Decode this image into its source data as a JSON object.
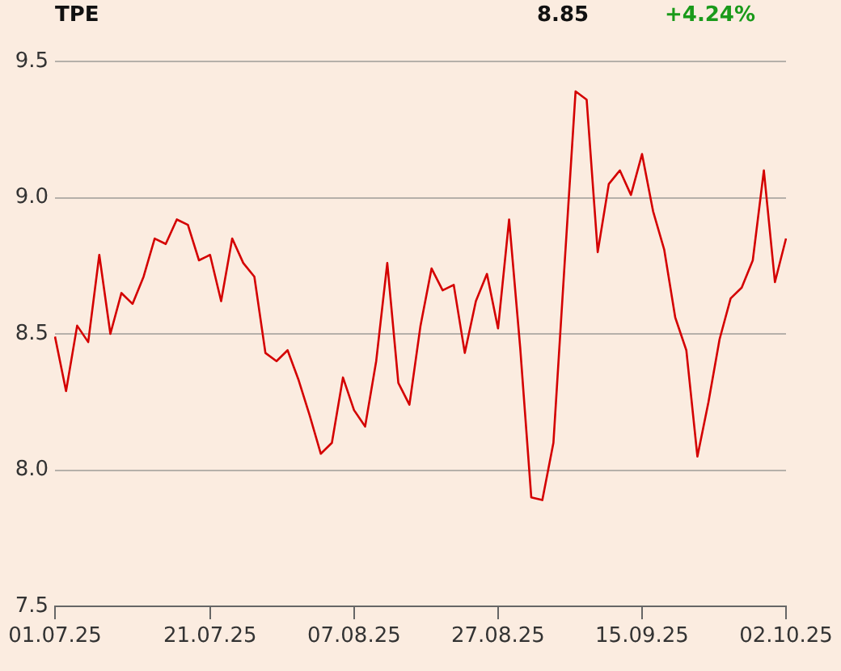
{
  "chart_data": {
    "type": "line",
    "title": "TPE",
    "annotations": [
      "8.85",
      "+4.24%"
    ],
    "categories": [
      "01.07.25",
      null,
      null,
      null,
      null,
      null,
      null,
      null,
      null,
      null,
      null,
      null,
      null,
      null,
      "21.07.25",
      null,
      null,
      null,
      null,
      null,
      null,
      null,
      null,
      null,
      null,
      null,
      null,
      "07.08.25",
      null,
      null,
      null,
      null,
      null,
      null,
      null,
      null,
      null,
      null,
      null,
      null,
      "27.08.25",
      null,
      null,
      null,
      null,
      null,
      null,
      null,
      null,
      null,
      null,
      null,
      null,
      "15.09.25",
      null,
      null,
      null,
      null,
      null,
      null,
      null,
      null,
      null,
      null,
      null,
      null,
      "02.10.25"
    ],
    "series": [
      {
        "color": "#d40000",
        "values": [
          8.49,
          8.29,
          8.53,
          8.47,
          8.79,
          8.5,
          8.65,
          8.61,
          8.71,
          8.85,
          8.83,
          8.92,
          8.9,
          8.77,
          8.79,
          8.62,
          8.85,
          8.76,
          8.71,
          8.43,
          8.4,
          8.44,
          8.33,
          8.2,
          8.06,
          8.1,
          8.34,
          8.22,
          8.16,
          8.4,
          8.76,
          8.32,
          8.24,
          8.53,
          8.74,
          8.66,
          8.68,
          8.43,
          8.62,
          8.72,
          8.52,
          8.92,
          8.45,
          7.9,
          7.89,
          8.1,
          8.75,
          9.39,
          9.36,
          8.8,
          9.05,
          9.1,
          9.01,
          9.16,
          8.95,
          8.81,
          8.56,
          8.44,
          8.05,
          8.25,
          8.48,
          8.63,
          8.67,
          8.77,
          9.1,
          8.69,
          8.85
        ]
      }
    ],
    "ylim": [
      7.5,
      9.5
    ],
    "yticks": [
      7.5,
      {
        "value": 8,
        "label": "8.0"
      },
      8.5,
      {
        "value": 9,
        "label": "9.0"
      },
      9.5
    ],
    "grid": "y",
    "legend": false,
    "marker": "none",
    "line_style": "solid"
  }
}
